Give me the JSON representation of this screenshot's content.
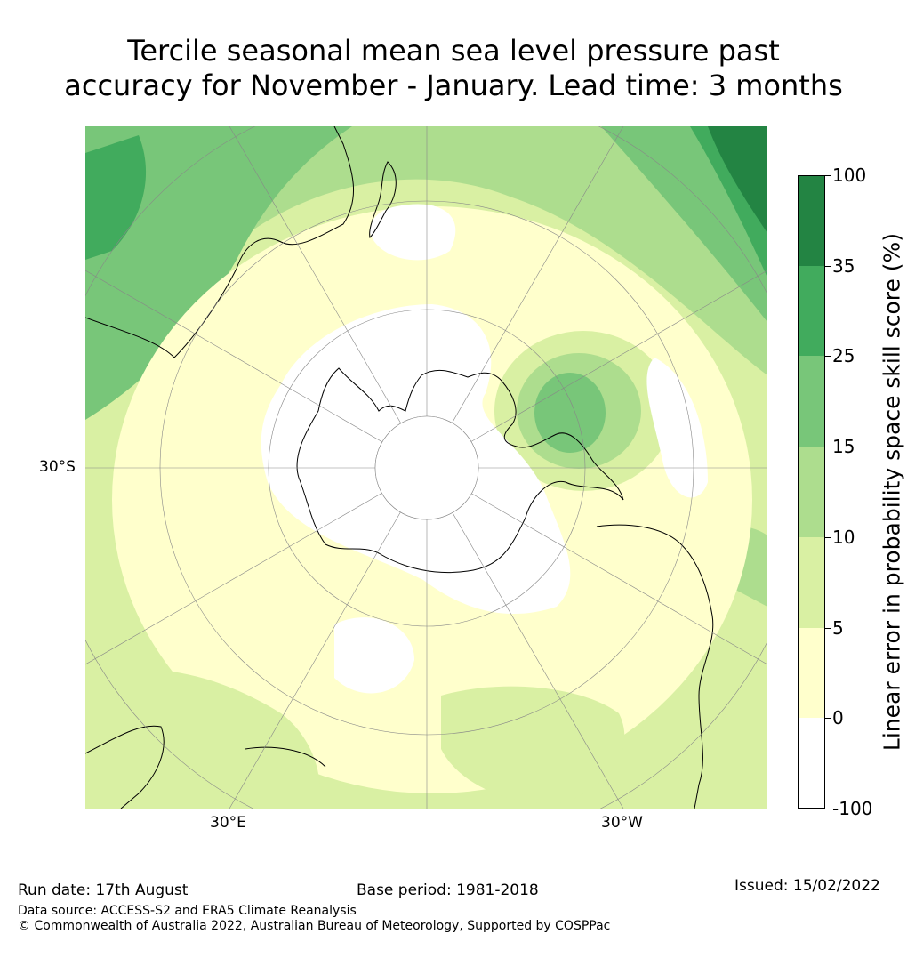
{
  "title": {
    "line1": "Tercile seasonal mean sea level pressure past",
    "line2": "accuracy for November - January. Lead time: 3 months"
  },
  "map": {
    "projection": "south-polar-stereographic",
    "lat_label": "30°S",
    "lon_labels": [
      "30°E",
      "30°W"
    ]
  },
  "colorbar": {
    "title": "Linear error in probability space skill score (%)",
    "tick_labels": [
      "100",
      "35",
      "25",
      "15",
      "10",
      "5",
      "0",
      "-100"
    ],
    "bins": [
      {
        "range": "-100 to 0",
        "color": "#ffffff"
      },
      {
        "range": "0 to 5",
        "color": "#ffffcc"
      },
      {
        "range": "5 to 10",
        "color": "#d9f0a3"
      },
      {
        "range": "10 to 15",
        "color": "#addd8e"
      },
      {
        "range": "15 to 25",
        "color": "#78c679"
      },
      {
        "range": "25 to 35",
        "color": "#41ab5d"
      },
      {
        "range": "35 to 100",
        "color": "#238443"
      }
    ]
  },
  "footer": {
    "run_date": "Run date: 17th August",
    "base_period": "Base period: 1981-2018",
    "issued": "Issued: 15/02/2022",
    "data_source": "Data source: ACCESS-S2 and ERA5 Climate Reanalysis",
    "copyright": "© Commonwealth of Australia 2022, Australian Bureau of Meteorology, Supported by COSPPac"
  }
}
